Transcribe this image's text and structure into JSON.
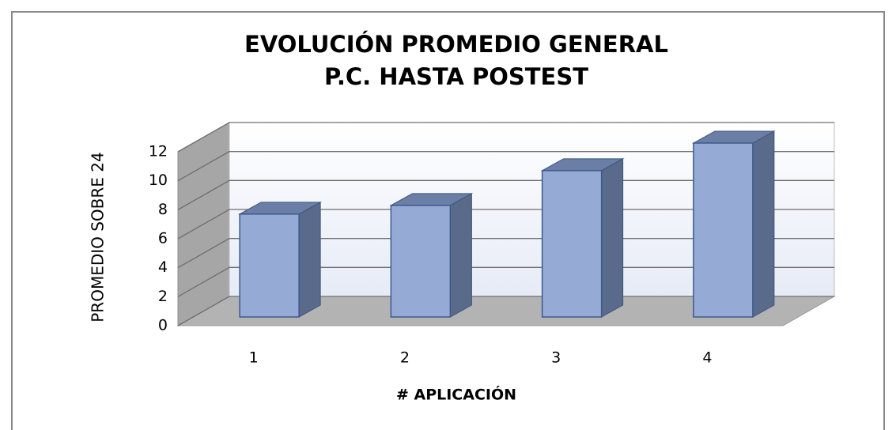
{
  "chart_data": {
    "type": "bar3d",
    "title": [
      "EVOLUCIÓN PROMEDIO GENERAL",
      "P.C. HASTA POSTEST"
    ],
    "x_label": "#  APLICACIÓN",
    "y_label": "PROMEDIO SOBRE 24",
    "categories": [
      "1",
      "2",
      "3",
      "4"
    ],
    "values": [
      7.1,
      7.7,
      10.1,
      12.0
    ],
    "color": "#95abd6",
    "ylim": [
      0,
      12
    ],
    "yticks": [
      0,
      2,
      4,
      6,
      8,
      10,
      12
    ],
    "grid": true
  }
}
